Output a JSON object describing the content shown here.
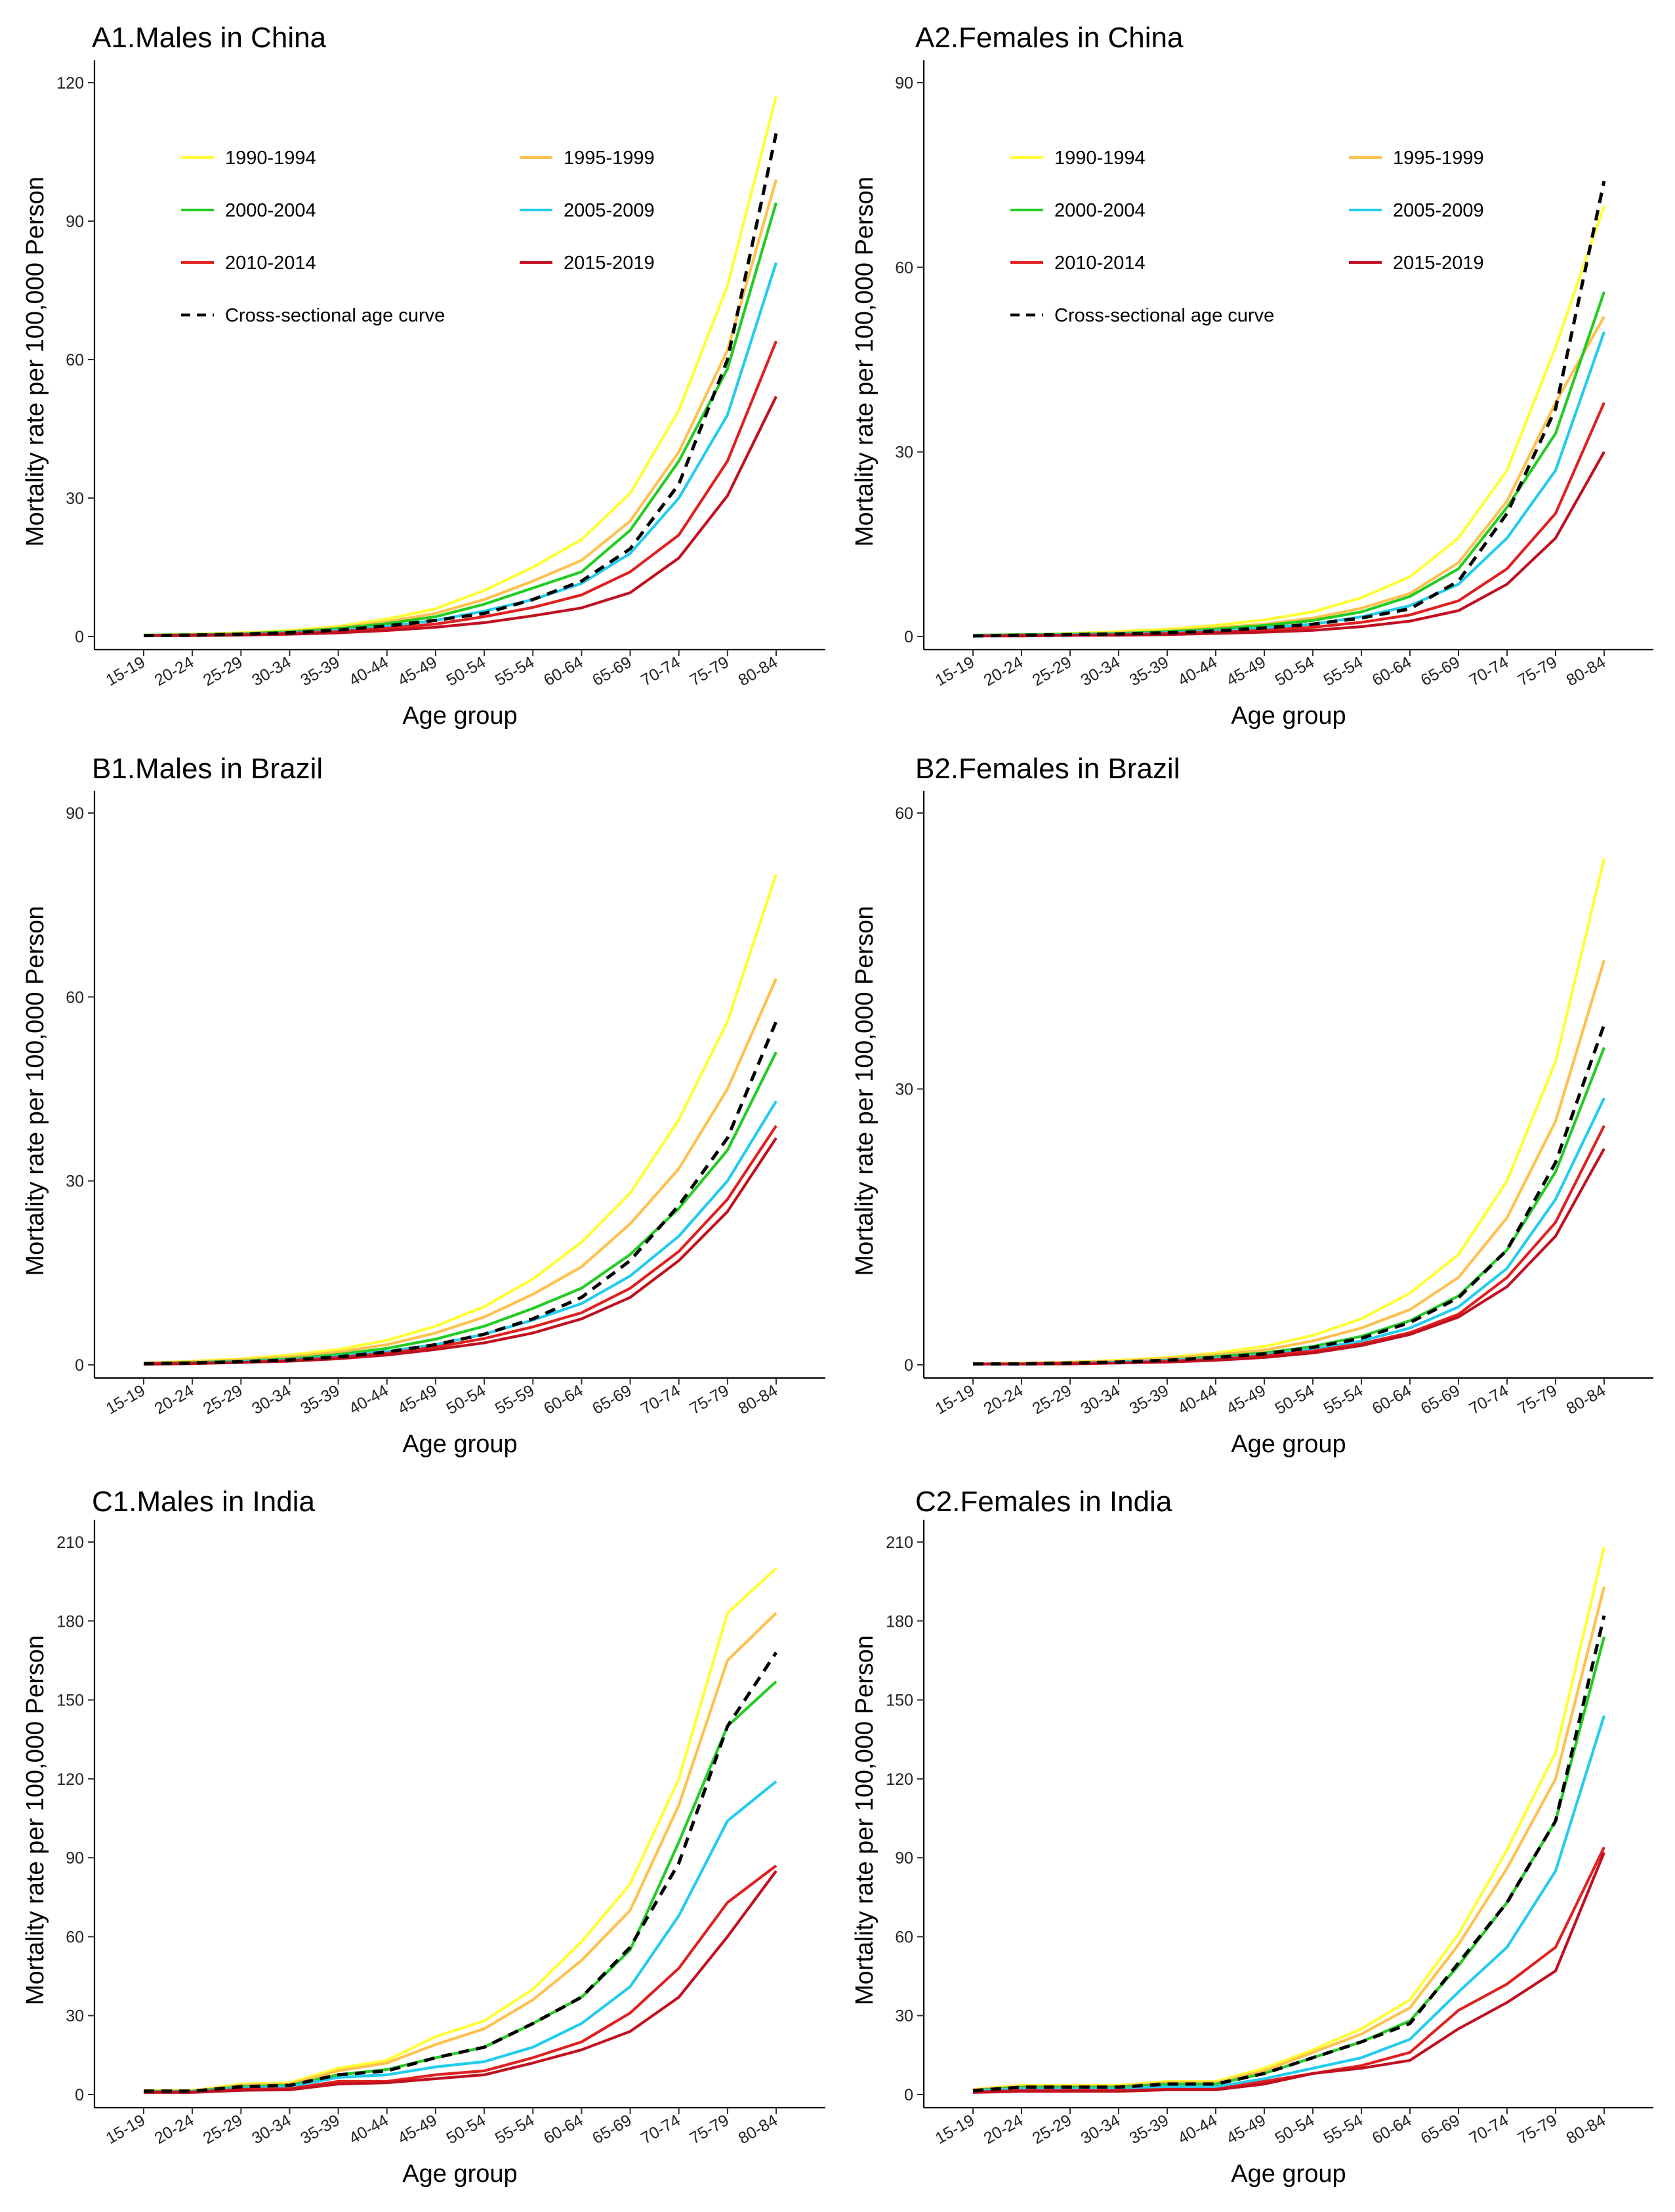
{
  "chart_data": [
    {
      "type": "line",
      "title": "A1.Males in China",
      "xlabel": "Age group",
      "ylabel": "Mortality rate per 100,000 Person",
      "ylim": [
        0,
        120
      ],
      "yticks": [
        0,
        30,
        60,
        90,
        120
      ],
      "categories": [
        "15-19",
        "20-24",
        "25-29",
        "30-34",
        "35-39",
        "40-44",
        "45-49",
        "50-54",
        "55-54",
        "60-64",
        "65-69",
        "70-74",
        "75-79",
        "80-84"
      ],
      "legend_position": "top-left",
      "series": [
        {
          "name": "1990-1994",
          "color": "#ffff33",
          "dashed": false,
          "values": [
            0.3,
            0.5,
            0.8,
            1.3,
            2.2,
            3.8,
            6,
            10,
            15,
            21,
            31,
            49,
            76,
            117
          ]
        },
        {
          "name": "1995-1999",
          "color": "#ffc04d",
          "dashed": false,
          "values": [
            0.3,
            0.4,
            0.7,
            1.1,
            1.9,
            3.2,
            5,
            8,
            12,
            16.5,
            25,
            40,
            62,
            99
          ]
        },
        {
          "name": "2000-2004",
          "color": "#22cc22",
          "dashed": false,
          "values": [
            0.3,
            0.4,
            0.6,
            1,
            1.7,
            2.8,
            4.3,
            7,
            10.5,
            14,
            23,
            38,
            58,
            94
          ]
        },
        {
          "name": "2005-2009",
          "color": "#22ccee",
          "dashed": false,
          "values": [
            0.2,
            0.3,
            0.5,
            0.8,
            1.3,
            2.2,
            3.5,
            5.5,
            8,
            11.5,
            18,
            30,
            48,
            81
          ]
        },
        {
          "name": "2010-2014",
          "color": "#e02020",
          "dashed": false,
          "values": [
            0.2,
            0.3,
            0.4,
            0.7,
            1.1,
            1.8,
            2.7,
            4.3,
            6.3,
            9,
            14,
            22,
            38,
            64
          ]
        },
        {
          "name": "2015-2019",
          "color": "#c01020",
          "dashed": false,
          "values": [
            0.2,
            0.2,
            0.3,
            0.5,
            0.8,
            1.3,
            2,
            3,
            4.5,
            6.2,
            9.5,
            17,
            30.5,
            52
          ]
        },
        {
          "name": "Cross-sectional age curve",
          "color": "#000000",
          "dashed": true,
          "values": [
            0.2,
            0.3,
            0.5,
            0.8,
            1.4,
            2.3,
            3.5,
            5,
            8,
            12,
            19,
            33,
            60,
            109
          ]
        }
      ]
    },
    {
      "type": "line",
      "title": "A2.Females in China",
      "xlabel": "Age group",
      "ylabel": "Mortality rate per 100,000 Person",
      "ylim": [
        0,
        90
      ],
      "yticks": [
        0,
        30,
        60,
        90
      ],
      "categories": [
        "15-19",
        "20-24",
        "25-29",
        "30-34",
        "35-39",
        "40-44",
        "45-49",
        "50-54",
        "55-54",
        "60-64",
        "65-69",
        "70-74",
        "75-79",
        "80-84"
      ],
      "legend_position": "top-left",
      "series": [
        {
          "name": "1990-1994",
          "color": "#ffff33",
          "dashed": false,
          "values": [
            0.2,
            0.3,
            0.5,
            0.8,
            1.2,
            1.8,
            2.7,
            4,
            6.3,
            9.7,
            16,
            27,
            47,
            70
          ]
        },
        {
          "name": "1995-1999",
          "color": "#ffc04d",
          "dashed": false,
          "values": [
            0.2,
            0.3,
            0.4,
            0.6,
            0.9,
            1.4,
            2,
            3,
            4.6,
            7,
            12,
            22,
            38,
            52
          ]
        },
        {
          "name": "2000-2004",
          "color": "#22cc22",
          "dashed": false,
          "values": [
            0.2,
            0.3,
            0.4,
            0.5,
            0.8,
            1.2,
            1.8,
            2.6,
            4,
            6.5,
            11,
            21,
            33,
            56
          ]
        },
        {
          "name": "2005-2009",
          "color": "#22ccee",
          "dashed": false,
          "values": [
            0.2,
            0.2,
            0.3,
            0.4,
            0.6,
            0.9,
            1.4,
            2,
            3.2,
            5,
            8.5,
            16,
            27,
            49.5
          ]
        },
        {
          "name": "2010-2014",
          "color": "#e02020",
          "dashed": false,
          "values": [
            0.1,
            0.2,
            0.2,
            0.3,
            0.5,
            0.7,
            1,
            1.5,
            2.3,
            3.5,
            5.8,
            11,
            20,
            38
          ]
        },
        {
          "name": "2015-2019",
          "color": "#c01020",
          "dashed": false,
          "values": [
            0.1,
            0.1,
            0.2,
            0.2,
            0.3,
            0.5,
            0.7,
            1,
            1.6,
            2.5,
            4.2,
            8.5,
            16,
            30
          ]
        },
        {
          "name": "Cross-sectional age curve",
          "color": "#000000",
          "dashed": true,
          "values": [
            0.1,
            0.2,
            0.3,
            0.4,
            0.6,
            0.9,
            1.4,
            2,
            3,
            4.5,
            9,
            20,
            37,
            74
          ]
        }
      ]
    },
    {
      "type": "line",
      "title": "B1.Males in Brazil",
      "xlabel": "Age group",
      "ylabel": "Mortality rate per 100,000 Person",
      "ylim": [
        0,
        90
      ],
      "yticks": [
        0,
        30,
        60,
        90
      ],
      "categories": [
        "15-19",
        "20-24",
        "25-29",
        "30-34",
        "35-39",
        "40-44",
        "45-49",
        "50-54",
        "55-59",
        "60-64",
        "65-69",
        "70-74",
        "75-79",
        "80-84"
      ],
      "series": [
        {
          "name": "1990-1994",
          "color": "#ffff33",
          "dashed": false,
          "values": [
            0.3,
            0.6,
            1,
            1.6,
            2.5,
            4,
            6.3,
            9.5,
            14,
            20,
            28,
            40,
            56,
            80
          ]
        },
        {
          "name": "1995-1999",
          "color": "#ffc04d",
          "dashed": false,
          "values": [
            0.3,
            0.5,
            0.8,
            1.3,
            2.1,
            3.3,
            5.2,
            7.8,
            11.5,
            16,
            23,
            32,
            45,
            63
          ]
        },
        {
          "name": "2000-2004",
          "color": "#22cc22",
          "dashed": false,
          "values": [
            0.2,
            0.4,
            0.6,
            1,
            1.7,
            2.7,
            4.2,
            6.3,
            9.2,
            12.5,
            18,
            25.5,
            35,
            51
          ]
        },
        {
          "name": "2005-2009",
          "color": "#22ccee",
          "dashed": false,
          "values": [
            0.2,
            0.3,
            0.5,
            0.8,
            1.4,
            2.2,
            3.3,
            5,
            7.3,
            10,
            14.5,
            21,
            30,
            43
          ]
        },
        {
          "name": "2010-2014",
          "color": "#e02020",
          "dashed": false,
          "values": [
            0.2,
            0.3,
            0.4,
            0.7,
            1.2,
            1.9,
            2.9,
            4.3,
            6.2,
            8.5,
            12.5,
            18.5,
            27,
            39
          ]
        },
        {
          "name": "2015-2019",
          "color": "#c01020",
          "dashed": false,
          "values": [
            0.1,
            0.2,
            0.4,
            0.6,
            1,
            1.6,
            2.5,
            3.6,
            5.2,
            7.5,
            11,
            17,
            25,
            37
          ]
        },
        {
          "name": "Cross-sectional age curve",
          "color": "#000000",
          "dashed": true,
          "values": [
            0.2,
            0.3,
            0.5,
            0.8,
            1.3,
            2.1,
            3.3,
            5,
            7.5,
            11,
            17,
            26,
            37,
            56
          ]
        }
      ]
    },
    {
      "type": "line",
      "title": "B2.Females in Brazil",
      "xlabel": "Age group",
      "ylabel": "Mortality rate per 100,000 Person",
      "ylim": [
        0,
        60
      ],
      "yticks": [
        0,
        30,
        60
      ],
      "categories": [
        "15-19",
        "20-24",
        "25-29",
        "30-34",
        "35-39",
        "40-44",
        "45-49",
        "50-54",
        "55-54",
        "60-64",
        "65-69",
        "70-74",
        "75-79",
        "80-84"
      ],
      "series": [
        {
          "name": "1990-1994",
          "color": "#ffff33",
          "dashed": false,
          "values": [
            0.1,
            0.2,
            0.3,
            0.5,
            0.8,
            1.3,
            2,
            3.2,
            5,
            7.8,
            12,
            20,
            33,
            55
          ]
        },
        {
          "name": "1995-1999",
          "color": "#ffc04d",
          "dashed": false,
          "values": [
            0.1,
            0.2,
            0.3,
            0.4,
            0.7,
            1.1,
            1.6,
            2.6,
            4,
            6,
            9.5,
            16,
            26.5,
            44
          ]
        },
        {
          "name": "2000-2004",
          "color": "#22cc22",
          "dashed": false,
          "values": [
            0.1,
            0.1,
            0.2,
            0.3,
            0.5,
            0.9,
            1.3,
            2,
            3.1,
            4.8,
            7.5,
            12.5,
            21,
            34.5
          ]
        },
        {
          "name": "2005-2009",
          "color": "#22ccee",
          "dashed": false,
          "values": [
            0.1,
            0.1,
            0.2,
            0.3,
            0.5,
            0.7,
            1.1,
            1.7,
            2.6,
            4,
            6.3,
            10.5,
            18,
            29
          ]
        },
        {
          "name": "2010-2014",
          "color": "#e02020",
          "dashed": false,
          "values": [
            0.1,
            0.1,
            0.2,
            0.2,
            0.4,
            0.6,
            1,
            1.5,
            2.3,
            3.5,
            5.5,
            9.5,
            15.5,
            26
          ]
        },
        {
          "name": "2015-2019",
          "color": "#c01020",
          "dashed": false,
          "values": [
            0.1,
            0.1,
            0.1,
            0.2,
            0.3,
            0.5,
            0.8,
            1.3,
            2.1,
            3.3,
            5.2,
            8.5,
            14,
            23.5
          ]
        },
        {
          "name": "Cross-sectional age curve",
          "color": "#000000",
          "dashed": true,
          "values": [
            0.1,
            0.1,
            0.2,
            0.3,
            0.5,
            0.8,
            1.2,
            1.9,
            2.9,
            4.6,
            7.3,
            12.5,
            22,
            37
          ]
        }
      ]
    },
    {
      "type": "line",
      "title": "C1.Males in India",
      "xlabel": "Age group",
      "ylabel": "Mortality rate per 100,000 Person",
      "ylim": [
        0,
        210
      ],
      "yticks": [
        0,
        30,
        60,
        90,
        120,
        150,
        180,
        210
      ],
      "categories": [
        "15-19",
        "20-24",
        "25-29",
        "30-34",
        "35-39",
        "40-44",
        "45-49",
        "50-54",
        "55-54",
        "60-64",
        "65-69",
        "70-74",
        "75-79",
        "80-84"
      ],
      "series": [
        {
          "name": "1990-1994",
          "color": "#ffff33",
          "dashed": false,
          "values": [
            1.5,
            1.5,
            4,
            4.5,
            10,
            13,
            22,
            28,
            40,
            58,
            80,
            120,
            183,
            200
          ]
        },
        {
          "name": "1995-1999",
          "color": "#ffc04d",
          "dashed": false,
          "values": [
            1.3,
            1.3,
            3.5,
            4,
            9,
            12,
            19,
            25,
            36,
            51,
            70,
            110,
            165,
            183
          ]
        },
        {
          "name": "2000-2004",
          "color": "#22cc22",
          "dashed": false,
          "values": [
            1.3,
            1.3,
            3,
            3.5,
            7.5,
            9.5,
            14,
            18,
            27,
            37,
            55,
            96,
            140,
            157
          ]
        },
        {
          "name": "2005-2009",
          "color": "#22ccee",
          "dashed": false,
          "values": [
            1.1,
            1.1,
            2.5,
            3,
            6.5,
            7.5,
            10.5,
            12.5,
            18,
            27,
            41,
            68,
            104,
            119
          ]
        },
        {
          "name": "2010-2014",
          "color": "#e02020",
          "dashed": false,
          "values": [
            1,
            1,
            2,
            2.2,
            5,
            5,
            7.5,
            9,
            14,
            20,
            31,
            48,
            73,
            87
          ]
        },
        {
          "name": "2015-2019",
          "color": "#c01020",
          "dashed": false,
          "values": [
            0.8,
            0.8,
            1.6,
            1.8,
            4,
            4.5,
            6,
            7.5,
            12,
            17,
            24,
            37,
            60,
            85
          ]
        },
        {
          "name": "Cross-sectional age curve",
          "color": "#000000",
          "dashed": true,
          "values": [
            1.3,
            1.3,
            3,
            3.5,
            7.5,
            9,
            14,
            18,
            27,
            37,
            56,
            88,
            140,
            168
          ]
        }
      ]
    },
    {
      "type": "line",
      "title": "C2.Females in India",
      "xlabel": "Age group",
      "ylabel": "Mortality rate per 100,000 Person",
      "ylim": [
        0,
        210
      ],
      "yticks": [
        0,
        30,
        60,
        90,
        120,
        150,
        180,
        210
      ],
      "categories": [
        "15-19",
        "20-24",
        "25-29",
        "30-34",
        "35-39",
        "40-44",
        "45-49",
        "50-54",
        "55-54",
        "60-64",
        "65-69",
        "70-74",
        "75-79",
        "80-84"
      ],
      "series": [
        {
          "name": "1990-1994",
          "color": "#ffff33",
          "dashed": false,
          "values": [
            2,
            3.5,
            3.5,
            3.5,
            5,
            5,
            10,
            17,
            25,
            36,
            61,
            93,
            130,
            208
          ]
        },
        {
          "name": "1995-1999",
          "color": "#ffc04d",
          "dashed": false,
          "values": [
            1.8,
            3.2,
            3.2,
            3.2,
            4.5,
            4.5,
            9,
            16,
            23,
            33,
            57,
            86,
            120,
            193
          ]
        },
        {
          "name": "2000-2004",
          "color": "#22cc22",
          "dashed": false,
          "values": [
            1.6,
            2.8,
            2.8,
            2.8,
            4,
            4,
            8,
            14,
            20,
            28,
            49,
            73,
            104,
            174
          ]
        },
        {
          "name": "2005-2009",
          "color": "#22ccee",
          "dashed": false,
          "values": [
            1.4,
            2.2,
            2.2,
            2.2,
            3,
            3,
            6,
            10,
            14,
            21,
            39,
            56,
            85,
            144
          ]
        },
        {
          "name": "2010-2014",
          "color": "#e02020",
          "dashed": false,
          "values": [
            1,
            1.5,
            1.5,
            1.5,
            2,
            2,
            5,
            8,
            11,
            16,
            32,
            42,
            56,
            94
          ]
        },
        {
          "name": "2015-2019",
          "color": "#c01020",
          "dashed": false,
          "values": [
            0.8,
            1.2,
            1.2,
            1.2,
            1.8,
            1.8,
            4,
            8,
            10,
            13,
            25,
            35,
            47,
            92
          ]
        },
        {
          "name": "Cross-sectional age curve",
          "color": "#000000",
          "dashed": true,
          "values": [
            1.5,
            2.8,
            2.8,
            2.8,
            4,
            4,
            8,
            14,
            20,
            27,
            50,
            73,
            104,
            182
          ]
        }
      ]
    }
  ]
}
